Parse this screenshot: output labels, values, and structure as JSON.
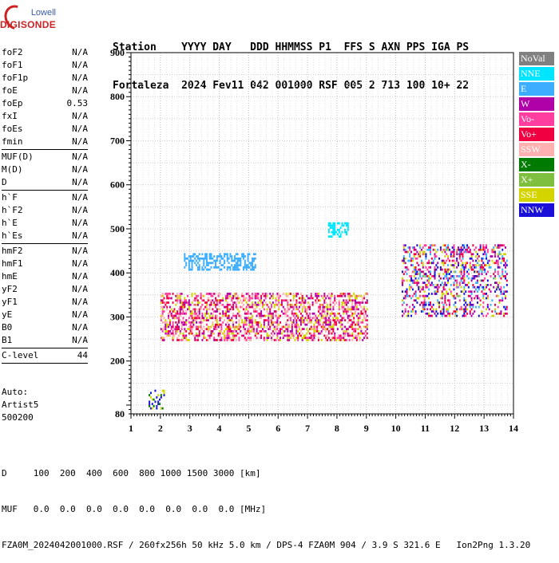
{
  "logo": {
    "top": "Lowell",
    "main": "DIGISONDE"
  },
  "header": {
    "line1": "Station    YYYY DAY   DDD HHMMSS P1  FFS S AXN PPS IGA PS",
    "line2": "Fortaleza  2024 Fev11 042 001000 RSF 005 2 713 100 10+ 22"
  },
  "params": {
    "group1": [
      {
        "label": "foF2",
        "value": "N/A"
      },
      {
        "label": "foF1",
        "value": "N/A"
      },
      {
        "label": "foF1p",
        "value": "N/A"
      },
      {
        "label": "foE",
        "value": "N/A"
      },
      {
        "label": "foEp",
        "value": "0.53"
      },
      {
        "label": "fxI",
        "value": "N/A"
      },
      {
        "label": "foEs",
        "value": "N/A"
      },
      {
        "label": "fmin",
        "value": "N/A"
      }
    ],
    "group2": [
      {
        "label": "MUF(D)",
        "value": "N/A"
      },
      {
        "label": "M(D)",
        "value": "N/A"
      },
      {
        "label": "D",
        "value": "N/A"
      }
    ],
    "group3": [
      {
        "label": "h`F",
        "value": "N/A"
      },
      {
        "label": "h`F2",
        "value": "N/A"
      },
      {
        "label": "h`E",
        "value": "N/A"
      },
      {
        "label": "h`Es",
        "value": "N/A"
      }
    ],
    "group4": [
      {
        "label": "hmF2",
        "value": "N/A"
      },
      {
        "label": "hmF1",
        "value": "N/A"
      },
      {
        "label": "hmE",
        "value": "N/A"
      },
      {
        "label": "yF2",
        "value": "N/A"
      },
      {
        "label": "yF1",
        "value": "N/A"
      },
      {
        "label": "yE",
        "value": "N/A"
      },
      {
        "label": "B0",
        "value": "N/A"
      },
      {
        "label": "B1",
        "value": "N/A"
      }
    ],
    "group5": [
      {
        "label": "C-level",
        "value": "44"
      }
    ]
  },
  "auto": {
    "line1": "Auto:",
    "line2": "Artist5",
    "line3": "500200"
  },
  "footer": {
    "line1": "D     100  200  400  600  800 1000 1500 3000 [km]",
    "line2": "MUF   0.0  0.0  0.0  0.0  0.0  0.0  0.0  0.0 [MHz]",
    "line3": "FZA0M_2024042001000.RSF / 260fx256h 50 kHz 5.0 km / DPS-4 FZA0M 904 / 3.9 S 321.6 E   Ion2Png 1.3.20"
  },
  "legend": [
    {
      "label": "NoVal",
      "color": "#808080"
    },
    {
      "label": "NNE",
      "color": "#00e5ff"
    },
    {
      "label": "E",
      "color": "#3daeff"
    },
    {
      "label": "W",
      "color": "#b000a8"
    },
    {
      "label": "Vo-",
      "color": "#ff3ea0"
    },
    {
      "label": "Vo+",
      "color": "#f00040"
    },
    {
      "label": "SSW",
      "color": "#ffb0b0"
    },
    {
      "label": "X-",
      "color": "#007a00"
    },
    {
      "label": "X+",
      "color": "#7fbf3f"
    },
    {
      "label": "SSE",
      "color": "#d4d400"
    },
    {
      "label": "NNW",
      "color": "#1a10d8"
    }
  ],
  "chart_data": {
    "type": "scatter",
    "title": "",
    "xlabel": "",
    "ylabel": "",
    "xlim": [
      1,
      14
    ],
    "ylim": [
      80,
      900
    ],
    "x_ticks": [
      "1",
      "2",
      "3",
      "4",
      "5",
      "6",
      "7",
      "8",
      "9",
      "10",
      "11",
      "12",
      "13",
      "14"
    ],
    "y_ticks": [
      "80",
      "200",
      "300",
      "400",
      "500",
      "600",
      "700",
      "800",
      "900"
    ],
    "grid": true,
    "clusters": [
      {
        "name": "O-trace F-layer",
        "x_range": [
          2.0,
          9.0
        ],
        "y_range": [
          245,
          350
        ],
        "colors": [
          "#f00040",
          "#d4d400",
          "#ffb0b0",
          "#ff3ea0",
          "#b000a8"
        ],
        "density": 0.5
      },
      {
        "name": "high F-layer",
        "x_range": [
          10.2,
          13.8
        ],
        "y_range": [
          300,
          460
        ],
        "colors": [
          "#f00040",
          "#b000a8",
          "#1a10d8",
          "#3daeff",
          "#ff3ea0",
          "#d4d400"
        ],
        "density": 0.35
      },
      {
        "name": "E-direction echoes",
        "x_range": [
          2.8,
          5.2
        ],
        "y_range": [
          405,
          440
        ],
        "colors": [
          "#3daeff"
        ],
        "density": 0.5
      },
      {
        "name": "NNE echoes",
        "x_range": [
          7.7,
          8.4
        ],
        "y_range": [
          480,
          510
        ],
        "colors": [
          "#00e5ff"
        ],
        "density": 0.5
      },
      {
        "name": "sporadic low",
        "x_range": [
          1.6,
          2.1
        ],
        "y_range": [
          90,
          130
        ],
        "colors": [
          "#007a00",
          "#1a10d8",
          "#d4d400"
        ],
        "density": 0.3
      }
    ]
  }
}
